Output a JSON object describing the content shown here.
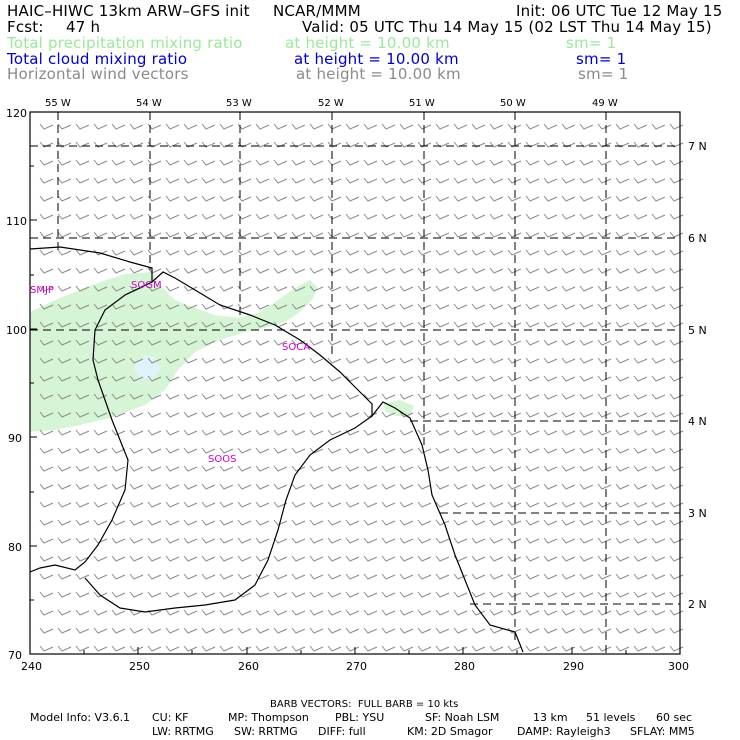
{
  "header": {
    "title": "HAIC–HIWC 13km ARW–GFS init",
    "org": "NCAR/MMM",
    "init": "Init: 06 UTC Tue 12 May 15",
    "fcst_label": "Fcst:",
    "fcst_value": "47 h",
    "valid": "Valid: 05 UTC Thu 14 May 15 (02 LST Thu 14 May 15)"
  },
  "fields": [
    {
      "name": "Total precipitation mixing ratio",
      "height": "at height = 10.00 km",
      "sm": "sm= 1",
      "color": "#9be89b"
    },
    {
      "name": "Total cloud mixing ratio",
      "height": "at height = 10.00 km",
      "sm": "sm= 1",
      "color": "#0000c8"
    },
    {
      "name": "Horizontal wind vectors",
      "height": "at height = 10.00 km",
      "sm": "sm= 1",
      "color": "#8a8a8a"
    }
  ],
  "map": {
    "x_ticks": [
      "240",
      "250",
      "260",
      "270",
      "280",
      "290",
      "300"
    ],
    "y_ticks": [
      "120",
      "110",
      "100",
      "90",
      "80",
      "70"
    ],
    "lon_labels": [
      "55 W",
      "54 W",
      "53 W",
      "52 W",
      "51 W",
      "50 W",
      "49 W"
    ],
    "lat_labels": [
      "7 N",
      "6 N",
      "5 N",
      "4 N",
      "3 N",
      "2 N"
    ],
    "stations": [
      "SMJP",
      "SOGM",
      "SOCA",
      "SOOS"
    ],
    "precip_color": "#d6f5d6",
    "cloud_color": "#dff3fb",
    "barb_color": "#8a8a8a"
  },
  "footer": {
    "barb": "BARB VECTORS:  FULL BARB = 10 kts",
    "model_info": "Model Info: V3.6.1",
    "cu": "CU: KF",
    "mp": "MP: Thompson",
    "pbl": "PBL: YSU",
    "sf": "SF: Noah LSM",
    "res": "13 km",
    "levels": "51 levels",
    "dt": "60 sec",
    "lw": "LW: RRTMG",
    "sw": "SW: RRTMG",
    "diff": "DIFF: full",
    "km": "KM: 2D Smagor",
    "damp": "DAMP: Rayleigh3",
    "sflay": "SFLAY: MM5"
  }
}
